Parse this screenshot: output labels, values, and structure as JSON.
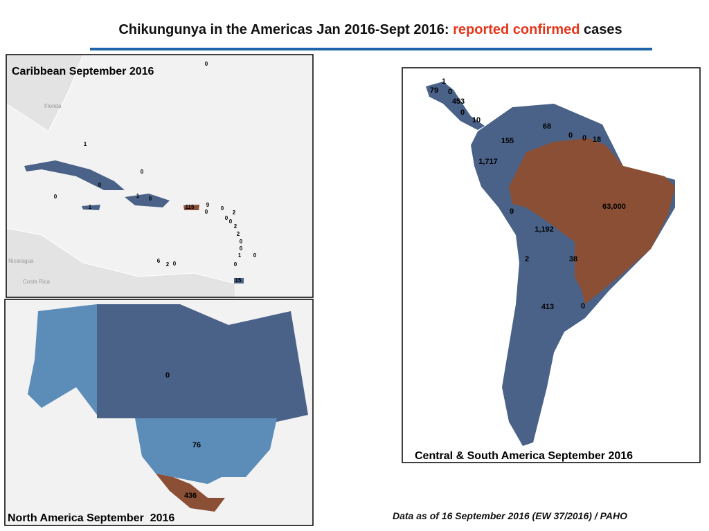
{
  "header": {
    "title_main": "Chikungunya in the Americas Jan 2016-Sept 2016:",
    "title_highlight": "reported confirmed",
    "title_end": "cases"
  },
  "panels": {
    "caribbean": {
      "title": "Caribbean September 2016",
      "labels": [
        "0",
        "1",
        "0",
        "0",
        "0",
        "1",
        "0",
        "1",
        "115",
        "9",
        "0",
        "0",
        "2",
        "0",
        "0",
        "2",
        "2",
        "0",
        "0",
        "1",
        "0",
        "6",
        "2",
        "0",
        "0",
        "15"
      ],
      "places": [
        "Florida",
        "Nicaragua",
        "Costa Rica"
      ]
    },
    "north_america": {
      "title": "North America September  2016",
      "labels": [
        "0",
        "76",
        "436"
      ]
    },
    "south_america": {
      "title": "Central & South America September 2016",
      "labels": [
        "1",
        "79",
        "0",
        "453",
        "0",
        "10",
        "68",
        "0",
        "0",
        "18",
        "155",
        "1,717",
        "9",
        "63,000",
        "1,192",
        "2",
        "38",
        "413",
        "0"
      ]
    }
  },
  "footer": "Data as of 16 September 2016 (EW 37/2016) / PAHO"
}
